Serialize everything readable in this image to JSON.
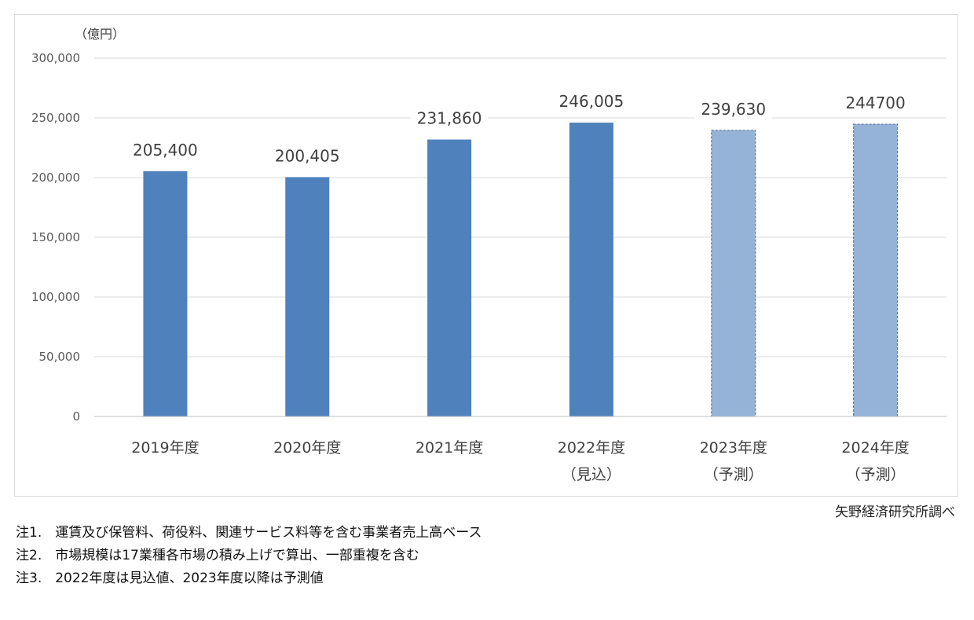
{
  "chart_data": {
    "type": "bar",
    "unit_label": "（億円）",
    "categories": [
      "2019年度",
      "2020年度",
      "2021年度",
      "2022年度",
      "2023年度",
      "2024年度"
    ],
    "category_sublabels": [
      "",
      "",
      "",
      "（見込）",
      "（予測）",
      "（予測）"
    ],
    "values": [
      205400,
      200405,
      231860,
      246005,
      239630,
      244700
    ],
    "data_labels": [
      "205,400",
      "200,405",
      "231,860",
      "246,005",
      "239,630",
      "244700"
    ],
    "bar_status": [
      "actual",
      "actual",
      "actual",
      "estimate",
      "forecast",
      "forecast"
    ],
    "ylim": [
      0,
      300000
    ],
    "yticks": [
      0,
      50000,
      100000,
      150000,
      200000,
      250000,
      300000
    ],
    "ytick_labels": [
      "0",
      "50,000",
      "100,000",
      "150,000",
      "200,000",
      "250,000",
      "300,000"
    ],
    "grid": true,
    "colors": {
      "actual": "#4f81bd",
      "forecast": "#95b3d7",
      "forecast_border": "#4f6f9a",
      "grid": "#d9d9d9"
    }
  },
  "source": "矢野経済研究所調べ",
  "notes": [
    "注1.　運賃及び保管料、荷役料、関連サービス料等を含む事業者売上高ベース",
    "注2.　市場規模は17業種各市場の積み上げで算出、一部重複を含む",
    "注3.　2022年度は見込値、2023年度以降は予測値"
  ]
}
